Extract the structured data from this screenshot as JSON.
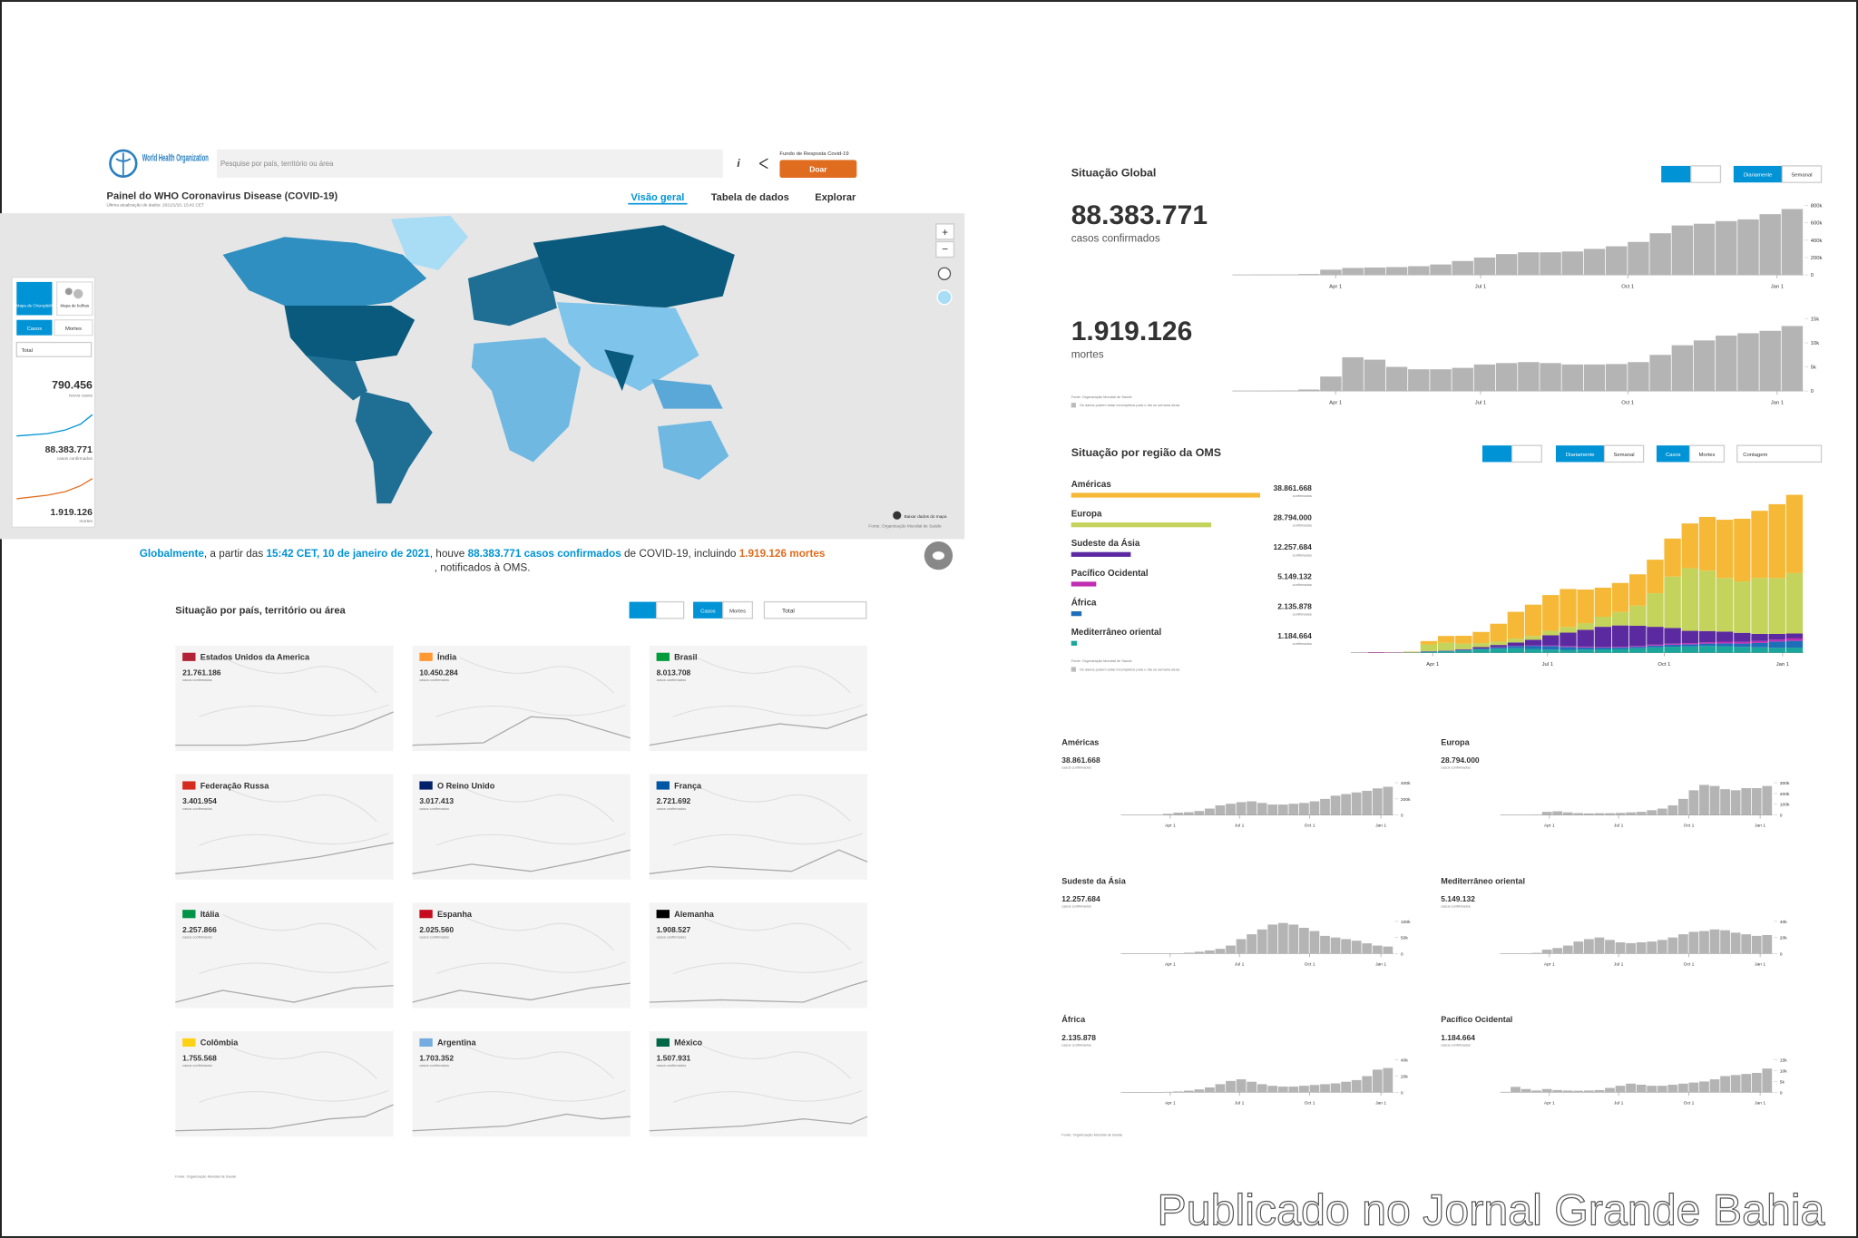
{
  "header": {
    "logo": "World Health Organization",
    "search": "Pesquise por país, território ou área",
    "fund": "Fundo de Resposta Covid-19",
    "donate": "Doar",
    "title": "Painel do WHO Coronavirus Disease (COVID-19)",
    "updated": "Última atualização de dados: 2021/1/10, 15:42 CET",
    "tabs": [
      "Visão geral",
      "Tabela de dados",
      "Explorar"
    ]
  },
  "map_panel": {
    "choropleth": "Mapa de Choropleth",
    "bubble": "Mapa de bolhas",
    "cases": "Casos",
    "deaths": "Mortes",
    "select": "Total",
    "new_cases": "790.456",
    "new_cases_label": "novos casos",
    "confirmed": "88.383.771",
    "confirmed_label": "casos confirmados",
    "deaths_total": "1.919.126",
    "deaths_label": "mortes",
    "download": "Baixar dados do mapa",
    "source": "Fonte: Organização Mundial de Saúde"
  },
  "summary": [
    "Globalmente",
    ", a partir das ",
    "15:42 CET, 10 de janeiro de 2021",
    ", houve ",
    "88.383.771 casos confirmados",
    " de COVID-19, incluindo ",
    "1.919.126 mortes",
    ", notificados à OMS."
  ],
  "countries": {
    "title": "Situação por país, território ou área",
    "buttons": [
      "Casos",
      "Mortes"
    ],
    "select": "Total",
    "caption": "casos confirmados",
    "source": "Fonte: Organização Mundial de Saúde",
    "items": [
      {
        "name": "Estados Unidos da America",
        "value": "21.761.186"
      },
      {
        "name": "Índia",
        "value": "10.450.284"
      },
      {
        "name": "Brasil",
        "value": "8.013.708"
      },
      {
        "name": "Federação Russa",
        "value": "3.401.954"
      },
      {
        "name": "O Reino Unido",
        "value": "3.017.413"
      },
      {
        "name": "França",
        "value": "2.721.692"
      },
      {
        "name": "Itália",
        "value": "2.257.866"
      },
      {
        "name": "Espanha",
        "value": "2.025.560"
      },
      {
        "name": "Alemanha",
        "value": "1.908.527"
      },
      {
        "name": "Colômbia",
        "value": "1.755.568"
      },
      {
        "name": "Argentina",
        "value": "1.703.352"
      },
      {
        "name": "México",
        "value": "1.507.931"
      }
    ]
  },
  "global_section": {
    "title": "Situação Global",
    "toggle": [
      "Diariamente",
      "Semanal"
    ],
    "source": "Fonte: Organização Mundial de Saúde",
    "note": "Os dados podem estar incompletos para o dia ou semana atual."
  },
  "region_section": {
    "title": "Situação por região da OMS",
    "toggle": [
      "Diariamente",
      "Semanal"
    ],
    "metric": [
      "Casos",
      "Mortes"
    ],
    "select": "Contagem",
    "source": "Fonte: Organização Mundial de Saúde",
    "note": "Os dados podem estar incompletos para o dia ou semana atual.",
    "footer": "Fonte: Organização Mundial de Saúde"
  },
  "watermark": "Publicado no Jornal Grande Bahia",
  "chart_data": [
    {
      "type": "bar",
      "subtitle": "88.383.771",
      "caption": "casos confirmados",
      "color": "#b4b4b4",
      "values": [
        1000,
        3000,
        2000,
        10000,
        60000,
        80000,
        85000,
        90000,
        100000,
        120000,
        160000,
        200000,
        240000,
        260000,
        260000,
        270000,
        300000,
        330000,
        380000,
        480000,
        570000,
        590000,
        620000,
        640000,
        700000,
        760000
      ],
      "xlim": [
        0,
        26
      ],
      "xticks": [
        {
          "value": 4.7,
          "label": "Apr 1"
        },
        {
          "value": 11.3,
          "label": "Jul 1"
        },
        {
          "value": 18,
          "label": "Oct 1"
        },
        {
          "value": 24.8,
          "label": "Jan 1"
        }
      ],
      "ylim": [
        0,
        820000
      ],
      "yticks": [
        0,
        {
          "value": 200000,
          "label": "200k"
        },
        {
          "value": 400000,
          "label": "400k"
        },
        {
          "value": 600000,
          "label": "600k"
        },
        {
          "value": 800000,
          "label": "800k"
        }
      ]
    },
    {
      "type": "bar",
      "subtitle": "1.919.126",
      "caption": "mortes",
      "color": "#b4b4b4",
      "values": [
        20,
        60,
        80,
        300,
        3000,
        7000,
        6500,
        5000,
        4500,
        4500,
        4800,
        5500,
        5800,
        6000,
        5800,
        5500,
        5500,
        5600,
        6000,
        7500,
        9500,
        10500,
        11500,
        12000,
        12500,
        13500
      ],
      "xlim": [
        0,
        26
      ],
      "xticks": [
        {
          "value": 4.7,
          "label": "Apr 1"
        },
        {
          "value": 11.3,
          "label": "Jul 1"
        },
        {
          "value": 18,
          "label": "Oct 1"
        },
        {
          "value": 24.8,
          "label": "Jan 1"
        }
      ],
      "ylim": [
        0,
        16000
      ],
      "yticks": [
        0,
        {
          "value": 5000,
          "label": "5k"
        },
        {
          "value": 10000,
          "label": "10k"
        },
        {
          "value": 15000,
          "label": "15k"
        }
      ]
    },
    {
      "type": "bar",
      "stacked": true,
      "caption": "confirmados",
      "totals": [
        38861668,
        28794000,
        12257684,
        5149132,
        2135878,
        1184664
      ],
      "total_labels": [
        "38.861.668",
        "28.794.000",
        "12.257.684",
        "5.149.132",
        "2.135.878",
        "1.184.664"
      ],
      "totals_lim": [
        0,
        39000000
      ],
      "xlim": [
        0,
        26
      ],
      "xticks": [
        {
          "value": 4.7,
          "label": "Apr 1"
        },
        {
          "value": 11.3,
          "label": "Jul 1"
        },
        {
          "value": 18,
          "label": "Oct 1"
        },
        {
          "value": 24.8,
          "label": "Jan 1"
        }
      ],
      "ylim": [
        0,
        720000
      ],
      "series": [
        {
          "name": "Mediterrâneo oriental",
          "color": "#1aa69a",
          "values": [
            0,
            0,
            50,
            1000,
            5000,
            7000,
            10000,
            15000,
            18000,
            20000,
            17000,
            14000,
            13000,
            14000,
            15000,
            17000,
            20000,
            24000,
            27000,
            28000,
            30000,
            29000,
            26000,
            24000,
            22000,
            23000
          ]
        },
        {
          "name": "África",
          "color": "#1f6fb8",
          "values": [
            0,
            0,
            0,
            50,
            500,
            1000,
            2000,
            3500,
            6000,
            10000,
            14000,
            16000,
            13000,
            10000,
            8000,
            7000,
            7000,
            8000,
            9000,
            10000,
            11000,
            13000,
            15000,
            20000,
            28000,
            30000
          ]
        },
        {
          "name": "Pacífico Ocidental",
          "color": "#c02db0",
          "values": [
            200,
            2500,
            1500,
            800,
            1500,
            1000,
            800,
            700,
            800,
            1000,
            2000,
            3000,
            4000,
            3500,
            3000,
            3000,
            3500,
            4000,
            4500,
            5000,
            6000,
            7500,
            8000,
            8500,
            9000,
            11000
          ]
        },
        {
          "name": "Sudeste da Ásia",
          "color": "#5b2aa0",
          "values": [
            0,
            0,
            0,
            0,
            200,
            1000,
            3000,
            6000,
            10000,
            15000,
            25000,
            45000,
            60000,
            75000,
            90000,
            95000,
            90000,
            80000,
            70000,
            55000,
            50000,
            45000,
            40000,
            32000,
            25000,
            22000
          ]
        },
        {
          "name": "Europa",
          "color": "#c3d35c",
          "values": [
            0,
            100,
            500,
            3000,
            30000,
            35000,
            25000,
            18000,
            15000,
            17000,
            17000,
            20000,
            25000,
            30000,
            45000,
            60000,
            90000,
            150000,
            230000,
            280000,
            270000,
            240000,
            230000,
            250000,
            250000,
            270000
          ]
        },
        {
          "name": "Américas",
          "color": "#f5b937",
          "values": [
            0,
            0,
            0,
            500,
            15000,
            30000,
            35000,
            50000,
            80000,
            120000,
            140000,
            160000,
            170000,
            150000,
            130000,
            130000,
            140000,
            150000,
            170000,
            200000,
            240000,
            260000,
            280000,
            300000,
            330000,
            350000
          ]
        }
      ]
    },
    {
      "type": "bar",
      "title": "Américas",
      "subtitle": "38.861.668",
      "caption": "casos confirmados",
      "color": "#b4b4b4",
      "values": [
        0,
        0,
        0,
        500,
        15000,
        30000,
        35000,
        50000,
        80000,
        120000,
        140000,
        160000,
        170000,
        150000,
        130000,
        130000,
        140000,
        150000,
        170000,
        200000,
        240000,
        260000,
        280000,
        300000,
        330000,
        350000
      ],
      "xlim": [
        0,
        26
      ],
      "xticks": [
        {
          "value": 4.7,
          "label": "Apr 1"
        },
        {
          "value": 11.3,
          "label": "Jul 1"
        },
        {
          "value": 18,
          "label": "Oct 1"
        },
        {
          "value": 24.8,
          "label": "Jan 1"
        }
      ],
      "ylim": [
        0,
        440000
      ],
      "yticks": [
        0,
        {
          "value": 200000,
          "label": "200k"
        },
        {
          "value": 400000,
          "label": "400k"
        }
      ]
    },
    {
      "type": "bar",
      "title": "Europa",
      "subtitle": "28.794.000",
      "caption": "casos confirmados",
      "color": "#b4b4b4",
      "values": [
        0,
        100,
        500,
        3000,
        30000,
        35000,
        25000,
        18000,
        15000,
        17000,
        17000,
        20000,
        25000,
        30000,
        45000,
        60000,
        90000,
        150000,
        230000,
        280000,
        270000,
        240000,
        230000,
        250000,
        250000,
        270000
      ],
      "xlim": [
        0,
        26
      ],
      "xticks": [
        {
          "value": 4.7,
          "label": "Apr 1"
        },
        {
          "value": 11.3,
          "label": "Jul 1"
        },
        {
          "value": 18,
          "label": "Oct 1"
        },
        {
          "value": 24.8,
          "label": "Jan 1"
        }
      ],
      "ylim": [
        0,
        330000
      ],
      "yticks": [
        0,
        {
          "value": 100000,
          "label": "100k"
        },
        {
          "value": 200000,
          "label": "200k"
        },
        {
          "value": 300000,
          "label": "300k"
        }
      ]
    },
    {
      "type": "bar",
      "title": "Sudeste da Ásia",
      "subtitle": "12.257.684",
      "caption": "casos confirmados",
      "color": "#b4b4b4",
      "values": [
        0,
        0,
        0,
        0,
        200,
        1000,
        3000,
        6000,
        10000,
        15000,
        25000,
        45000,
        60000,
        75000,
        90000,
        95000,
        90000,
        80000,
        70000,
        55000,
        50000,
        45000,
        40000,
        32000,
        25000,
        22000
      ],
      "xlim": [
        0,
        26
      ],
      "xticks": [
        {
          "value": 4.7,
          "label": "Apr 1"
        },
        {
          "value": 11.3,
          "label": "Jul 1"
        },
        {
          "value": 18,
          "label": "Oct 1"
        },
        {
          "value": 24.8,
          "label": "Jan 1"
        }
      ],
      "ylim": [
        0,
        110000
      ],
      "yticks": [
        0,
        {
          "value": 50000,
          "label": "50k"
        },
        {
          "value": 100000,
          "label": "100k"
        }
      ]
    },
    {
      "type": "bar",
      "title": "Mediterrâneo oriental",
      "subtitle": "5.149.132",
      "caption": "casos confirmados",
      "color": "#b4b4b4",
      "values": [
        0,
        0,
        50,
        1000,
        5000,
        7000,
        10000,
        15000,
        18000,
        20000,
        17000,
        14000,
        13000,
        14000,
        15000,
        17000,
        20000,
        24000,
        27000,
        28000,
        30000,
        29000,
        26000,
        24000,
        22000,
        23000
      ],
      "xlim": [
        0,
        26
      ],
      "xticks": [
        {
          "value": 4.7,
          "label": "Apr 1"
        },
        {
          "value": 11.3,
          "label": "Jul 1"
        },
        {
          "value": 18,
          "label": "Oct 1"
        },
        {
          "value": 24.8,
          "label": "Jan 1"
        }
      ],
      "ylim": [
        0,
        44000
      ],
      "yticks": [
        0,
        {
          "value": 20000,
          "label": "20k"
        },
        {
          "value": 40000,
          "label": "40k"
        }
      ]
    },
    {
      "type": "bar",
      "title": "África",
      "subtitle": "2.135.878",
      "caption": "casos confirmados",
      "color": "#b4b4b4",
      "values": [
        0,
        0,
        0,
        50,
        500,
        1000,
        2000,
        3500,
        6000,
        10000,
        14000,
        16000,
        13000,
        10000,
        8000,
        7000,
        7000,
        8000,
        9000,
        10000,
        11000,
        13000,
        15000,
        20000,
        28000,
        30000
      ],
      "xlim": [
        0,
        26
      ],
      "xticks": [
        {
          "value": 4.7,
          "label": "Apr 1"
        },
        {
          "value": 11.3,
          "label": "Jul 1"
        },
        {
          "value": 18,
          "label": "Oct 1"
        },
        {
          "value": 24.8,
          "label": "Jan 1"
        }
      ],
      "ylim": [
        0,
        44000
      ],
      "yticks": [
        0,
        {
          "value": 20000,
          "label": "20k"
        },
        {
          "value": 40000,
          "label": "40k"
        }
      ]
    },
    {
      "type": "bar",
      "title": "Pacífico Ocidental",
      "subtitle": "1.184.664",
      "caption": "casos confirmados",
      "color": "#b4b4b4",
      "values": [
        200,
        2500,
        1500,
        800,
        1500,
        1000,
        800,
        700,
        800,
        1000,
        2000,
        3000,
        4000,
        3500,
        3000,
        3000,
        3500,
        4000,
        4500,
        5000,
        6000,
        7500,
        8000,
        8500,
        9000,
        11000
      ],
      "xlim": [
        0,
        26
      ],
      "xticks": [
        {
          "value": 4.7,
          "label": "Apr 1"
        },
        {
          "value": 11.3,
          "label": "Jul 1"
        },
        {
          "value": 18,
          "label": "Oct 1"
        },
        {
          "value": 24.8,
          "label": "Jan 1"
        }
      ],
      "ylim": [
        0,
        16500
      ],
      "yticks": [
        0,
        {
          "value": 5000,
          "label": "5k"
        },
        {
          "value": 10000,
          "label": "10k"
        },
        {
          "value": 15000,
          "label": "15k"
        }
      ]
    }
  ]
}
